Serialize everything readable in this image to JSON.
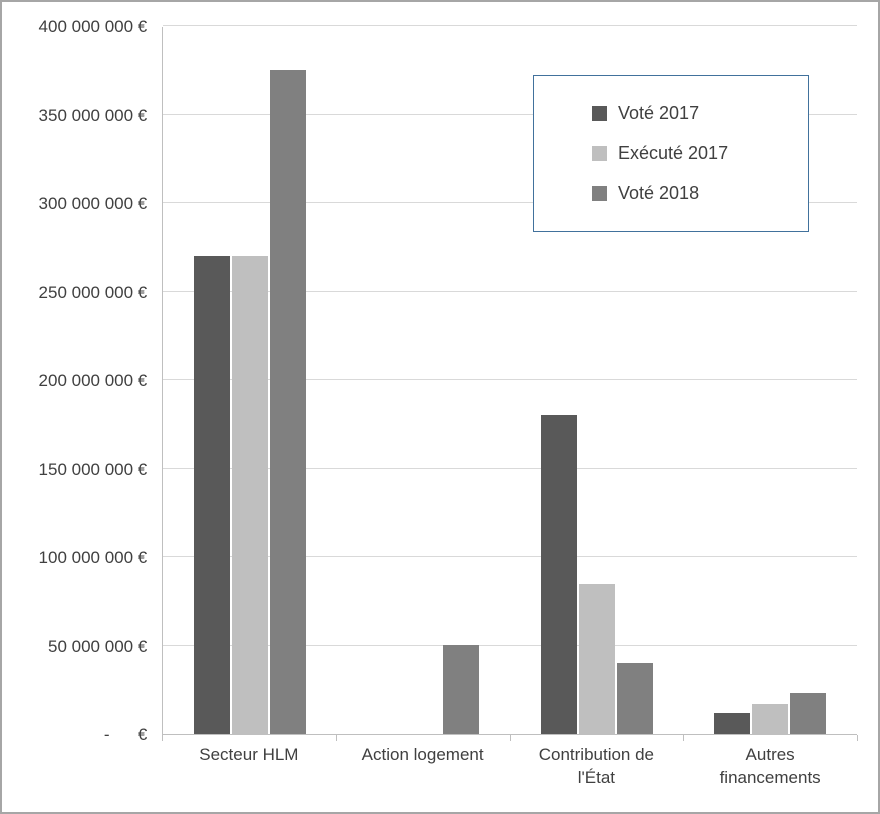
{
  "chart_data": {
    "type": "bar",
    "title": "",
    "xlabel": "",
    "ylabel": "",
    "categories": [
      "Secteur HLM",
      "Action logement",
      "Contribution de l'État",
      "Autres financements"
    ],
    "series": [
      {
        "name": "Voté 2017",
        "color": "#595959",
        "values": [
          270000000,
          0,
          180000000,
          12000000
        ]
      },
      {
        "name": "Exécuté 2017",
        "color": "#bfbfbf",
        "values": [
          270000000,
          0,
          85000000,
          17000000
        ]
      },
      {
        "name": "Voté 2018",
        "color": "#808080",
        "values": [
          375000000,
          50000000,
          40000000,
          23000000
        ]
      }
    ],
    "y_axis": {
      "min": 0,
      "max": 400000000,
      "step": 50000000,
      "tick_labels": [
        "-      € ",
        "50 000 000 € ",
        "100 000 000 € ",
        "150 000 000 € ",
        "200 000 000 € ",
        "250 000 000 € ",
        "300 000 000 € ",
        "350 000 000 € ",
        "400 000 000 € "
      ]
    },
    "grid": true,
    "legend_position": "top-right"
  },
  "colors": {
    "background": "#ffffff",
    "frame_border": "#a6a6a6",
    "gridline": "#d9d9d9",
    "axis_line": "#bfbfbf",
    "legend_border": "#41719c",
    "text": "#404040"
  }
}
